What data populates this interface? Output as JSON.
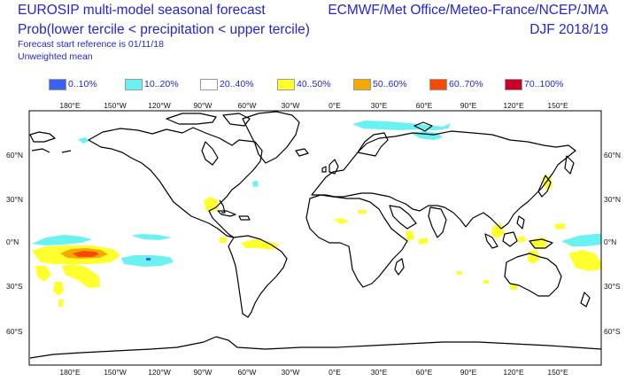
{
  "header": {
    "title_line1": "EUROSIP multi-model seasonal forecast",
    "title_line2": "Prob(lower tercile < precipitation < upper tercile)",
    "forecast_start": "Forecast start reference is 01/11/18",
    "weighting": "Unweighted mean",
    "centres": "ECMWF/Met Office/Meteo-France/NCEP/JMA",
    "season": "DJF 2018/19"
  },
  "legend": [
    {
      "label": "0..10%",
      "color": "#3a62f2"
    },
    {
      "label": "10..20%",
      "color": "#6af2f2"
    },
    {
      "label": "20..40%",
      "color": "#ffffff"
    },
    {
      "label": "40..50%",
      "color": "#ffff2e"
    },
    {
      "label": "50..60%",
      "color": "#f5a800"
    },
    {
      "label": "60..70%",
      "color": "#f54a00"
    },
    {
      "label": "70..100%",
      "color": "#c8002a"
    }
  ],
  "axes": {
    "lon_labels": [
      "180°E",
      "150°W",
      "120°W",
      "90°W",
      "60°W",
      "30°W",
      "0°E",
      "30°E",
      "60°E",
      "90°E",
      "120°E",
      "150°E"
    ],
    "lat_labels": [
      "60°N",
      "30°N",
      "0°N",
      "30°S",
      "60°S"
    ]
  },
  "colors": {
    "text": "#2424d6",
    "coast": "#000000",
    "frame": "#000000"
  }
}
